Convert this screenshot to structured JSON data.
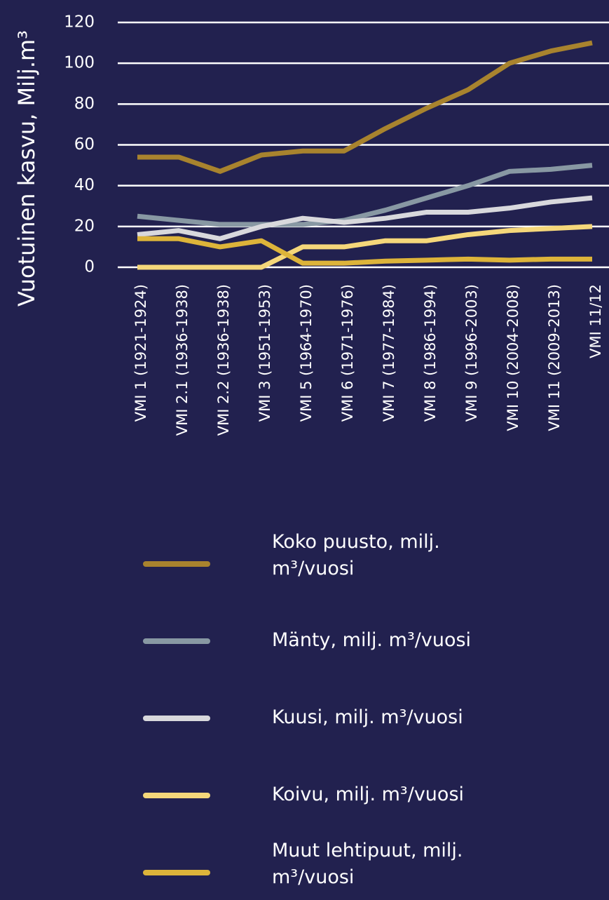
{
  "chart_data": {
    "type": "line",
    "ylabel": "Vuotuinen kasvu, Milj.m³",
    "categories": [
      "VMI 1 (1921-1924)",
      "VMI 2.1 (1936-1938)",
      "VMI 2.2 (1936-1938)",
      "VMI 3 (1951-1953)",
      "VMI 5 (1964-1970)",
      "VMI 6 (1971-1976)",
      "VMI 7 (1977-1984)",
      "VMI 8 (1986-1994)",
      "VMI 9 (1996-2003)",
      "VMI 10 (2004-2008)",
      "VMI 11 (2009-2013)",
      "VMI 11/12"
    ],
    "series": [
      {
        "name": "Koko puusto, milj. m³/vuosi",
        "color": "#a8832e",
        "values": [
          54,
          54,
          47,
          55,
          57,
          57,
          68,
          78,
          87,
          100,
          106,
          110
        ]
      },
      {
        "name": "Mänty, milj. m³/vuosi",
        "color": "#8898a3",
        "values": [
          25,
          23,
          21,
          21,
          21,
          23,
          28,
          34,
          40,
          47,
          48,
          50
        ]
      },
      {
        "name": "Kuusi, milj. m³/vuosi",
        "color": "#d8d8dc",
        "values": [
          16,
          18,
          14,
          20,
          24,
          22,
          24,
          27,
          27,
          29,
          32,
          34
        ]
      },
      {
        "name": "Koivu, milj. m³/vuosi",
        "color": "#f5d77a",
        "values": [
          0,
          0,
          0,
          0,
          10,
          10,
          13,
          13,
          16,
          18,
          19,
          20
        ]
      },
      {
        "name": "Muut lehtipuut, milj. m³/vuosi",
        "color": "#ddb43a",
        "values": [
          14,
          14,
          10,
          13,
          2,
          2,
          3,
          3.5,
          4,
          3.5,
          4,
          4
        ]
      }
    ],
    "ylim": [
      0,
      120
    ],
    "yticks": [
      0,
      20,
      40,
      60,
      80,
      100,
      120
    ],
    "grid": true
  }
}
